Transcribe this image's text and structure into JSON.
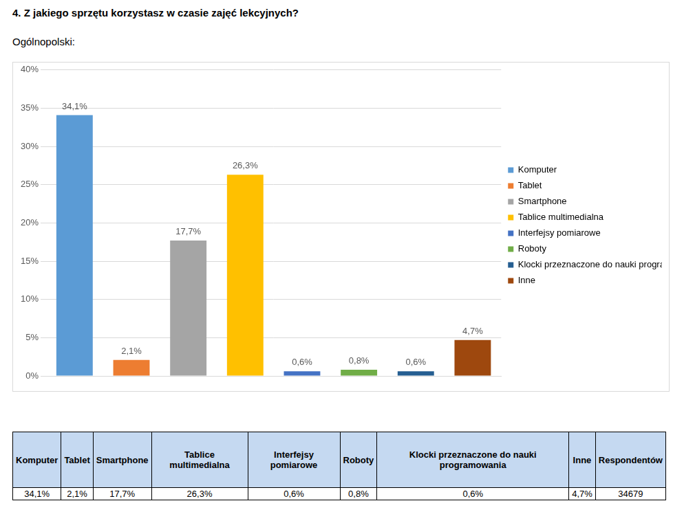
{
  "header": {
    "title": "4. Z jakiego sprzętu korzystasz w czasie zajęć lekcyjnych?",
    "subtitle": "Ogólnopolski:"
  },
  "chart_data": {
    "type": "bar",
    "categories": [
      "Komputer",
      "Tablet",
      "Smartphone",
      "Tablice multimedialna",
      "Interfejsy pomiarowe",
      "Roboty",
      "Klocki przeznaczone do nauki programowania",
      "Inne"
    ],
    "values": [
      34.1,
      2.1,
      17.7,
      26.3,
      0.6,
      0.8,
      0.6,
      4.7
    ],
    "value_labels": [
      "34,1%",
      "2,1%",
      "17,7%",
      "26,3%",
      "0,6%",
      "0,8%",
      "0,6%",
      "4,7%"
    ],
    "colors": [
      "#5b9bd5",
      "#ed7d31",
      "#a5a5a5",
      "#ffc000",
      "#4472c4",
      "#70ad47",
      "#255e91",
      "#9e480e"
    ],
    "ylim": [
      0,
      40
    ],
    "yticks": [
      {
        "value": 0,
        "label": "0%"
      },
      {
        "value": 5,
        "label": "5%"
      },
      {
        "value": 10,
        "label": "10%"
      },
      {
        "value": 15,
        "label": "15%"
      },
      {
        "value": 20,
        "label": "20%"
      },
      {
        "value": 25,
        "label": "25%"
      },
      {
        "value": 30,
        "label": "30%"
      },
      {
        "value": 35,
        "label": "35%"
      },
      {
        "value": 40,
        "label": "40%"
      }
    ],
    "grid": true,
    "legend": "right",
    "data_labels": true,
    "tick_labels": "y"
  },
  "table": {
    "header": [
      "Komputer",
      "Tablet",
      "Smartphone",
      "Tablice multimedialna",
      "Interfejsy pomiarowe",
      "Roboty",
      "Klocki przeznaczone do nauki programowania",
      "Inne",
      "Respondentów"
    ],
    "rows": [
      [
        "34,1%",
        "2,1%",
        "17,7%",
        "26,3%",
        "0,6%",
        "0,8%",
        "0,6%",
        "4,7%",
        "34679"
      ]
    ]
  }
}
